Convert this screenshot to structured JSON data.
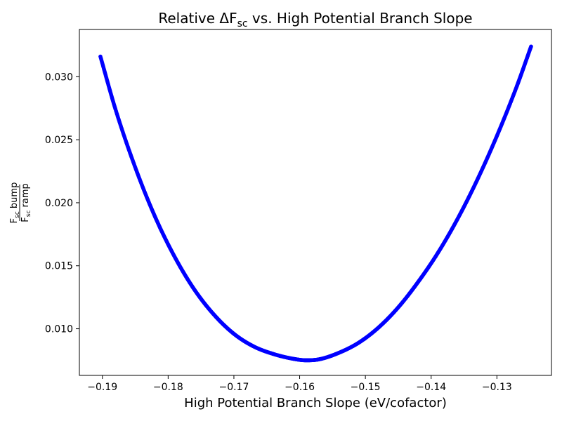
{
  "chart_data": {
    "type": "scatter",
    "title": {
      "prefix": "Relative ΔF",
      "subscript": "sc",
      "suffix": " vs. High Potential Branch Slope"
    },
    "xlabel": "High Potential Branch Slope (eV/cofactor)",
    "ylabel": {
      "numerator": {
        "base": "F",
        "subscript": "sc",
        "rest": " bump"
      },
      "denominator": {
        "base": "F",
        "subscript": "sc",
        "rest": " ramp"
      }
    },
    "xlim": [
      -0.1935,
      -0.1217
    ],
    "ylim": [
      0.0063,
      0.03375
    ],
    "xticks": [
      -0.19,
      -0.18,
      -0.17,
      -0.16,
      -0.15,
      -0.14,
      -0.13
    ],
    "xtick_labels": [
      "−0.19",
      "−0.18",
      "−0.17",
      "−0.16",
      "−0.15",
      "−0.14",
      "−0.13"
    ],
    "yticks": [
      0.01,
      0.015,
      0.02,
      0.025,
      0.03
    ],
    "ytick_labels": [
      "0.010",
      "0.015",
      "0.020",
      "0.025",
      "0.030"
    ],
    "grid": false,
    "series": [
      {
        "color": "#0000ff",
        "marker": "dot",
        "x": [
          -0.1903,
          -0.188,
          -0.185,
          -0.182,
          -0.179,
          -0.176,
          -0.173,
          -0.17,
          -0.167,
          -0.164,
          -0.161,
          -0.159,
          -0.157,
          -0.154,
          -0.151,
          -0.148,
          -0.145,
          -0.142,
          -0.139,
          -0.136,
          -0.133,
          -0.13,
          -0.127,
          -0.1248
        ],
        "y": [
          0.0316,
          0.0274,
          0.0228,
          0.0189,
          0.0157,
          0.0131,
          0.0111,
          0.0096,
          0.0086,
          0.008,
          0.00762,
          0.0075,
          0.00758,
          0.0081,
          0.0089,
          0.0101,
          0.0117,
          0.0137,
          0.016,
          0.0187,
          0.0218,
          0.0253,
          0.0292,
          0.0324
        ]
      }
    ]
  }
}
